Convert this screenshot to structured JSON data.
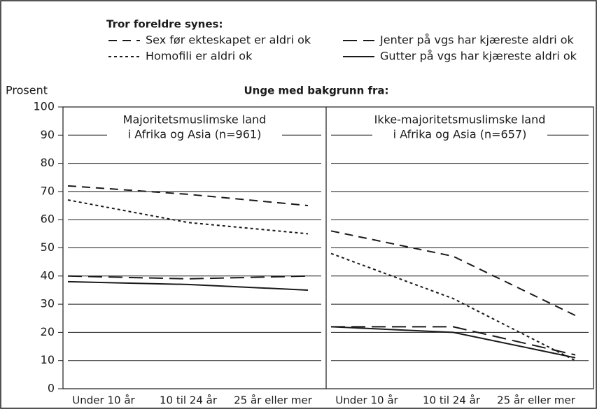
{
  "chart_data": {
    "type": "line",
    "title": "Unge med bakgrunn fra:",
    "legend_title": "Tror foreldre synes:",
    "ylabel": "Prosent",
    "categories": [
      "Under 10 år",
      "10 til 24 år",
      "25 år eller mer"
    ],
    "ylim": [
      0,
      100
    ],
    "yticks": [
      0,
      10,
      20,
      30,
      40,
      50,
      60,
      70,
      80,
      90,
      100
    ],
    "grid": true,
    "series": [
      {
        "name": "Sex før ekteskapet er aldri ok",
        "color": "#1a1a1a",
        "dash": "dashed"
      },
      {
        "name": "Homofili er aldri ok",
        "color": "#1a1a1a",
        "dash": "dotted"
      },
      {
        "name": "Jenter på vgs har kjæreste aldri ok",
        "color": "#1a1a1a",
        "dash": "longdash"
      },
      {
        "name": "Gutter på vgs har kjæreste aldri ok",
        "color": "#1a1a1a",
        "dash": "solid"
      }
    ],
    "panels": [
      {
        "title": [
          "Majoritetsmuslimske land",
          "i Afrika og Asia (n=961)"
        ],
        "values": [
          [
            72,
            69,
            65
          ],
          [
            67,
            59,
            55
          ],
          [
            40,
            39,
            40
          ],
          [
            38,
            37,
            35
          ]
        ]
      },
      {
        "title": [
          "Ikke-majoritetsmuslimske land",
          "i Afrika og Asia (n=657)"
        ],
        "values": [
          [
            56,
            47,
            26
          ],
          [
            48,
            32,
            10
          ],
          [
            22,
            22,
            12
          ],
          [
            22,
            20,
            11
          ]
        ]
      }
    ]
  }
}
